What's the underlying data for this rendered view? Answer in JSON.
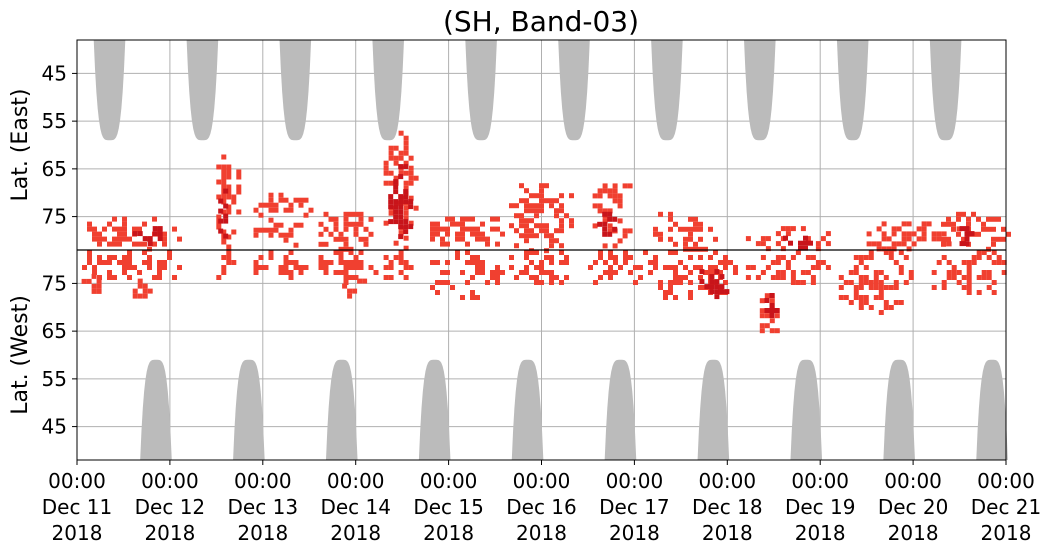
{
  "chart_data": {
    "type": "heatmap",
    "title": "(SH, Band-03)",
    "ylabel_top": "Lat. (East)",
    "ylabel_bottom": "Lat. (West)",
    "east_ticks": [
      45,
      55,
      65,
      75
    ],
    "west_ticks": [
      75,
      65,
      55,
      45
    ],
    "lat_range": [
      38,
      82
    ],
    "x_range_days": [
      0,
      10
    ],
    "x_ticks": [
      {
        "day": 0,
        "time": "00:00",
        "date": "Dec 11",
        "year": "2018"
      },
      {
        "day": 1,
        "time": "00:00",
        "date": "Dec 12",
        "year": "2018"
      },
      {
        "day": 2,
        "time": "00:00",
        "date": "Dec 13",
        "year": "2018"
      },
      {
        "day": 3,
        "time": "00:00",
        "date": "Dec 14",
        "year": "2018"
      },
      {
        "day": 4,
        "time": "00:00",
        "date": "Dec 15",
        "year": "2018"
      },
      {
        "day": 5,
        "time": "00:00",
        "date": "Dec 16",
        "year": "2018"
      },
      {
        "day": 6,
        "time": "00:00",
        "date": "Dec 17",
        "year": "2018"
      },
      {
        "day": 7,
        "time": "00:00",
        "date": "Dec 18",
        "year": "2018"
      },
      {
        "day": 8,
        "time": "00:00",
        "date": "Dec 19",
        "year": "2018"
      },
      {
        "day": 9,
        "time": "00:00",
        "date": "Dec 20",
        "year": "2018"
      },
      {
        "day": 10,
        "time": "00:00",
        "date": "Dec 21",
        "year": "2018"
      }
    ],
    "grid": true,
    "colors": {
      "echo": "#f04030",
      "echo_strong": "#c8141a",
      "no_coverage": "#bbbbbb",
      "grid": "#b0b0b0",
      "equator_line": "#000000"
    },
    "no_coverage_east": [
      {
        "center_day": 0.35,
        "half_width": 0.17,
        "min_lat": 59
      },
      {
        "center_day": 1.35,
        "half_width": 0.17,
        "min_lat": 59
      },
      {
        "center_day": 2.35,
        "half_width": 0.17,
        "min_lat": 59
      },
      {
        "center_day": 3.35,
        "half_width": 0.17,
        "min_lat": 59
      },
      {
        "center_day": 4.35,
        "half_width": 0.17,
        "min_lat": 59
      },
      {
        "center_day": 5.35,
        "half_width": 0.17,
        "min_lat": 59
      },
      {
        "center_day": 6.35,
        "half_width": 0.17,
        "min_lat": 59
      },
      {
        "center_day": 7.35,
        "half_width": 0.17,
        "min_lat": 59
      },
      {
        "center_day": 8.35,
        "half_width": 0.17,
        "min_lat": 59
      },
      {
        "center_day": 9.35,
        "half_width": 0.17,
        "min_lat": 59
      }
    ],
    "no_coverage_west": [
      {
        "center_day": 0.85,
        "half_width": 0.17,
        "min_lat": 59
      },
      {
        "center_day": 1.85,
        "half_width": 0.17,
        "min_lat": 59
      },
      {
        "center_day": 2.85,
        "half_width": 0.17,
        "min_lat": 59
      },
      {
        "center_day": 3.85,
        "half_width": 0.17,
        "min_lat": 59
      },
      {
        "center_day": 4.85,
        "half_width": 0.17,
        "min_lat": 59
      },
      {
        "center_day": 5.85,
        "half_width": 0.17,
        "min_lat": 59
      },
      {
        "center_day": 6.85,
        "half_width": 0.17,
        "min_lat": 59
      },
      {
        "center_day": 7.85,
        "half_width": 0.17,
        "min_lat": 59
      },
      {
        "center_day": 8.85,
        "half_width": 0.17,
        "min_lat": 59
      },
      {
        "center_day": 9.85,
        "half_width": 0.17,
        "min_lat": 59
      }
    ],
    "echo_regions": [
      {
        "hemi": "east",
        "day0": 0.0,
        "day1": 1.1,
        "lat_min": 75,
        "lat_max": 82,
        "strength": "normal"
      },
      {
        "hemi": "west",
        "day0": 0.0,
        "day1": 1.1,
        "lat_min": 75,
        "lat_max": 82,
        "strength": "normal"
      },
      {
        "hemi": "east",
        "day0": 0.6,
        "day1": 1.0,
        "lat_min": 77,
        "lat_max": 81,
        "strength": "strong"
      },
      {
        "hemi": "west",
        "day0": 0.05,
        "day1": 0.3,
        "lat_min": 73,
        "lat_max": 77,
        "strength": "normal"
      },
      {
        "hemi": "west",
        "day0": 0.6,
        "day1": 0.8,
        "lat_min": 71,
        "lat_max": 76,
        "strength": "normal"
      },
      {
        "hemi": "east",
        "day0": 1.5,
        "day1": 1.75,
        "lat_min": 62,
        "lat_max": 82,
        "strength": "normal"
      },
      {
        "hemi": "east",
        "day0": 1.52,
        "day1": 1.62,
        "lat_min": 66,
        "lat_max": 79,
        "strength": "strong"
      },
      {
        "hemi": "west",
        "day0": 1.5,
        "day1": 1.75,
        "lat_min": 76,
        "lat_max": 82,
        "strength": "normal"
      },
      {
        "hemi": "east",
        "day0": 1.9,
        "day1": 2.5,
        "lat_min": 70,
        "lat_max": 82,
        "strength": "normal"
      },
      {
        "hemi": "west",
        "day0": 1.9,
        "day1": 2.5,
        "lat_min": 76,
        "lat_max": 82,
        "strength": "normal"
      },
      {
        "hemi": "east",
        "day0": 2.6,
        "day1": 3.2,
        "lat_min": 74,
        "lat_max": 82,
        "strength": "normal"
      },
      {
        "hemi": "west",
        "day0": 2.6,
        "day1": 3.2,
        "lat_min": 75,
        "lat_max": 82,
        "strength": "normal"
      },
      {
        "hemi": "west",
        "day0": 2.8,
        "day1": 3.1,
        "lat_min": 72,
        "lat_max": 76,
        "strength": "normal"
      },
      {
        "hemi": "east",
        "day0": 3.3,
        "day1": 3.65,
        "lat_min": 57,
        "lat_max": 82,
        "strength": "normal"
      },
      {
        "hemi": "east",
        "day0": 3.35,
        "day1": 3.6,
        "lat_min": 64,
        "lat_max": 80,
        "strength": "strong"
      },
      {
        "hemi": "west",
        "day0": 3.3,
        "day1": 3.65,
        "lat_min": 76,
        "lat_max": 82,
        "strength": "normal"
      },
      {
        "hemi": "east",
        "day0": 3.8,
        "day1": 4.6,
        "lat_min": 75,
        "lat_max": 82,
        "strength": "normal"
      },
      {
        "hemi": "west",
        "day0": 3.8,
        "day1": 4.6,
        "lat_min": 72,
        "lat_max": 82,
        "strength": "normal"
      },
      {
        "hemi": "east",
        "day0": 4.65,
        "day1": 5.3,
        "lat_min": 68,
        "lat_max": 82,
        "strength": "normal"
      },
      {
        "hemi": "west",
        "day0": 4.65,
        "day1": 5.3,
        "lat_min": 74,
        "lat_max": 82,
        "strength": "normal"
      },
      {
        "hemi": "east",
        "day0": 5.55,
        "day1": 5.95,
        "lat_min": 67,
        "lat_max": 82,
        "strength": "normal"
      },
      {
        "hemi": "east",
        "day0": 5.6,
        "day1": 5.8,
        "lat_min": 74,
        "lat_max": 79,
        "strength": "strong"
      },
      {
        "hemi": "west",
        "day0": 5.5,
        "day1": 6.2,
        "lat_min": 75,
        "lat_max": 82,
        "strength": "normal"
      },
      {
        "hemi": "east",
        "day0": 6.2,
        "day1": 6.9,
        "lat_min": 74,
        "lat_max": 82,
        "strength": "normal"
      },
      {
        "hemi": "west",
        "day0": 6.2,
        "day1": 7.1,
        "lat_min": 72,
        "lat_max": 82,
        "strength": "normal"
      },
      {
        "hemi": "west",
        "day0": 6.7,
        "day1": 7.0,
        "lat_min": 72,
        "lat_max": 78,
        "strength": "strong"
      },
      {
        "hemi": "west",
        "day0": 7.35,
        "day1": 7.6,
        "lat_min": 64,
        "lat_max": 74,
        "strength": "normal"
      },
      {
        "hemi": "west",
        "day0": 7.4,
        "day1": 7.55,
        "lat_min": 68,
        "lat_max": 73,
        "strength": "strong"
      },
      {
        "hemi": "east",
        "day0": 7.2,
        "day1": 8.1,
        "lat_min": 77,
        "lat_max": 82,
        "strength": "normal"
      },
      {
        "hemi": "east",
        "day0": 7.6,
        "day1": 7.95,
        "lat_min": 79,
        "lat_max": 82,
        "strength": "strong"
      },
      {
        "hemi": "west",
        "day0": 7.2,
        "day1": 8.1,
        "lat_min": 75,
        "lat_max": 82,
        "strength": "normal"
      },
      {
        "hemi": "west",
        "day0": 8.2,
        "day1": 9.0,
        "lat_min": 69,
        "lat_max": 82,
        "strength": "normal"
      },
      {
        "hemi": "east",
        "day0": 8.5,
        "day1": 9.5,
        "lat_min": 76,
        "lat_max": 82,
        "strength": "normal"
      },
      {
        "hemi": "west",
        "day0": 9.2,
        "day1": 10.0,
        "lat_min": 73,
        "lat_max": 82,
        "strength": "normal"
      },
      {
        "hemi": "east",
        "day0": 9.3,
        "day1": 10.0,
        "lat_min": 74,
        "lat_max": 82,
        "strength": "normal"
      },
      {
        "hemi": "east",
        "day0": 9.5,
        "day1": 9.65,
        "lat_min": 77,
        "lat_max": 81,
        "strength": "strong"
      }
    ]
  }
}
